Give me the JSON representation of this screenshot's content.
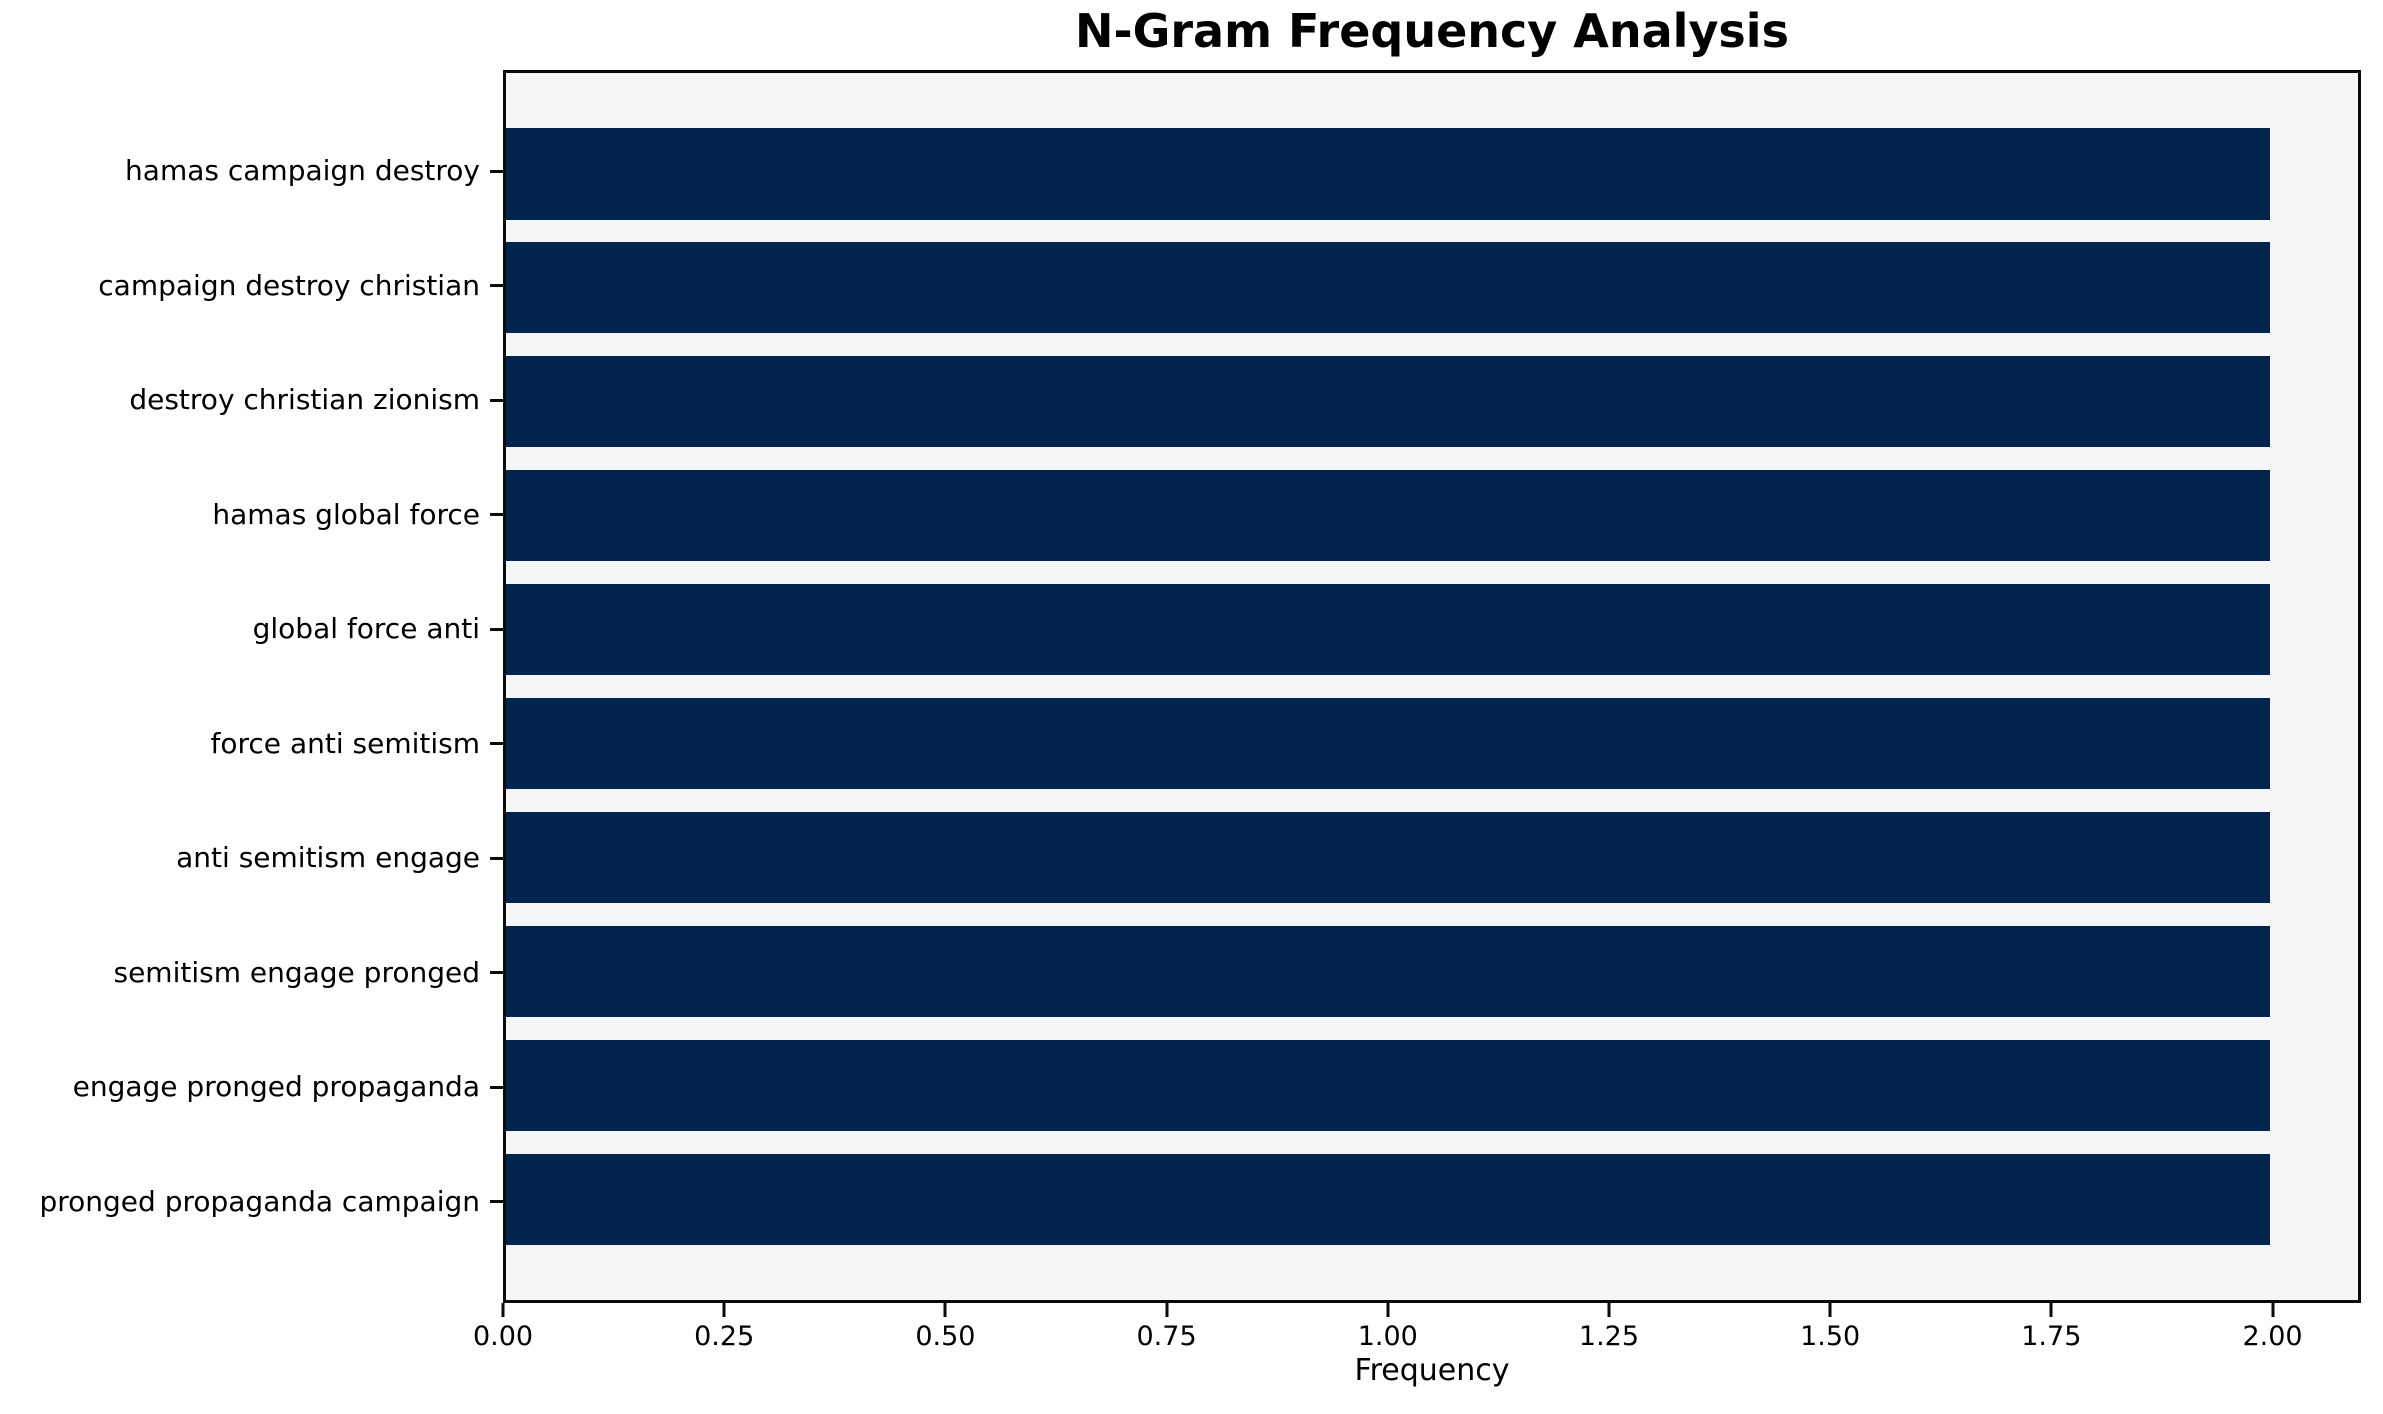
{
  "title": "N-Gram Frequency Analysis",
  "xlabel": "Frequency",
  "colors": {
    "bar": "#02254d",
    "plot_bg": "#f5f6f8",
    "spine": "#0a0a0a",
    "figure_bg": "#ffffff"
  },
  "chart_data": {
    "type": "bar",
    "orientation": "horizontal",
    "title": "N-Gram Frequency Analysis",
    "xlabel": "Frequency",
    "ylabel": "",
    "categories": [
      "hamas campaign destroy",
      "campaign destroy christian",
      "destroy christian zionism",
      "hamas global force",
      "global force anti",
      "force anti semitism",
      "anti semitism engage",
      "semitism engage pronged",
      "engage pronged propaganda",
      "pronged propaganda campaign"
    ],
    "values": [
      2.0,
      2.0,
      2.0,
      2.0,
      2.0,
      2.0,
      2.0,
      2.0,
      2.0,
      2.0
    ],
    "xlim": [
      0,
      2.1
    ],
    "xticks": [
      "0.00",
      "0.25",
      "0.50",
      "0.75",
      "1.00",
      "1.25",
      "1.50",
      "1.75",
      "2.00"
    ],
    "xtick_values": [
      0,
      0.25,
      0.5,
      0.75,
      1.0,
      1.25,
      1.5,
      1.75,
      2.0
    ],
    "grid": false,
    "legend": null
  }
}
